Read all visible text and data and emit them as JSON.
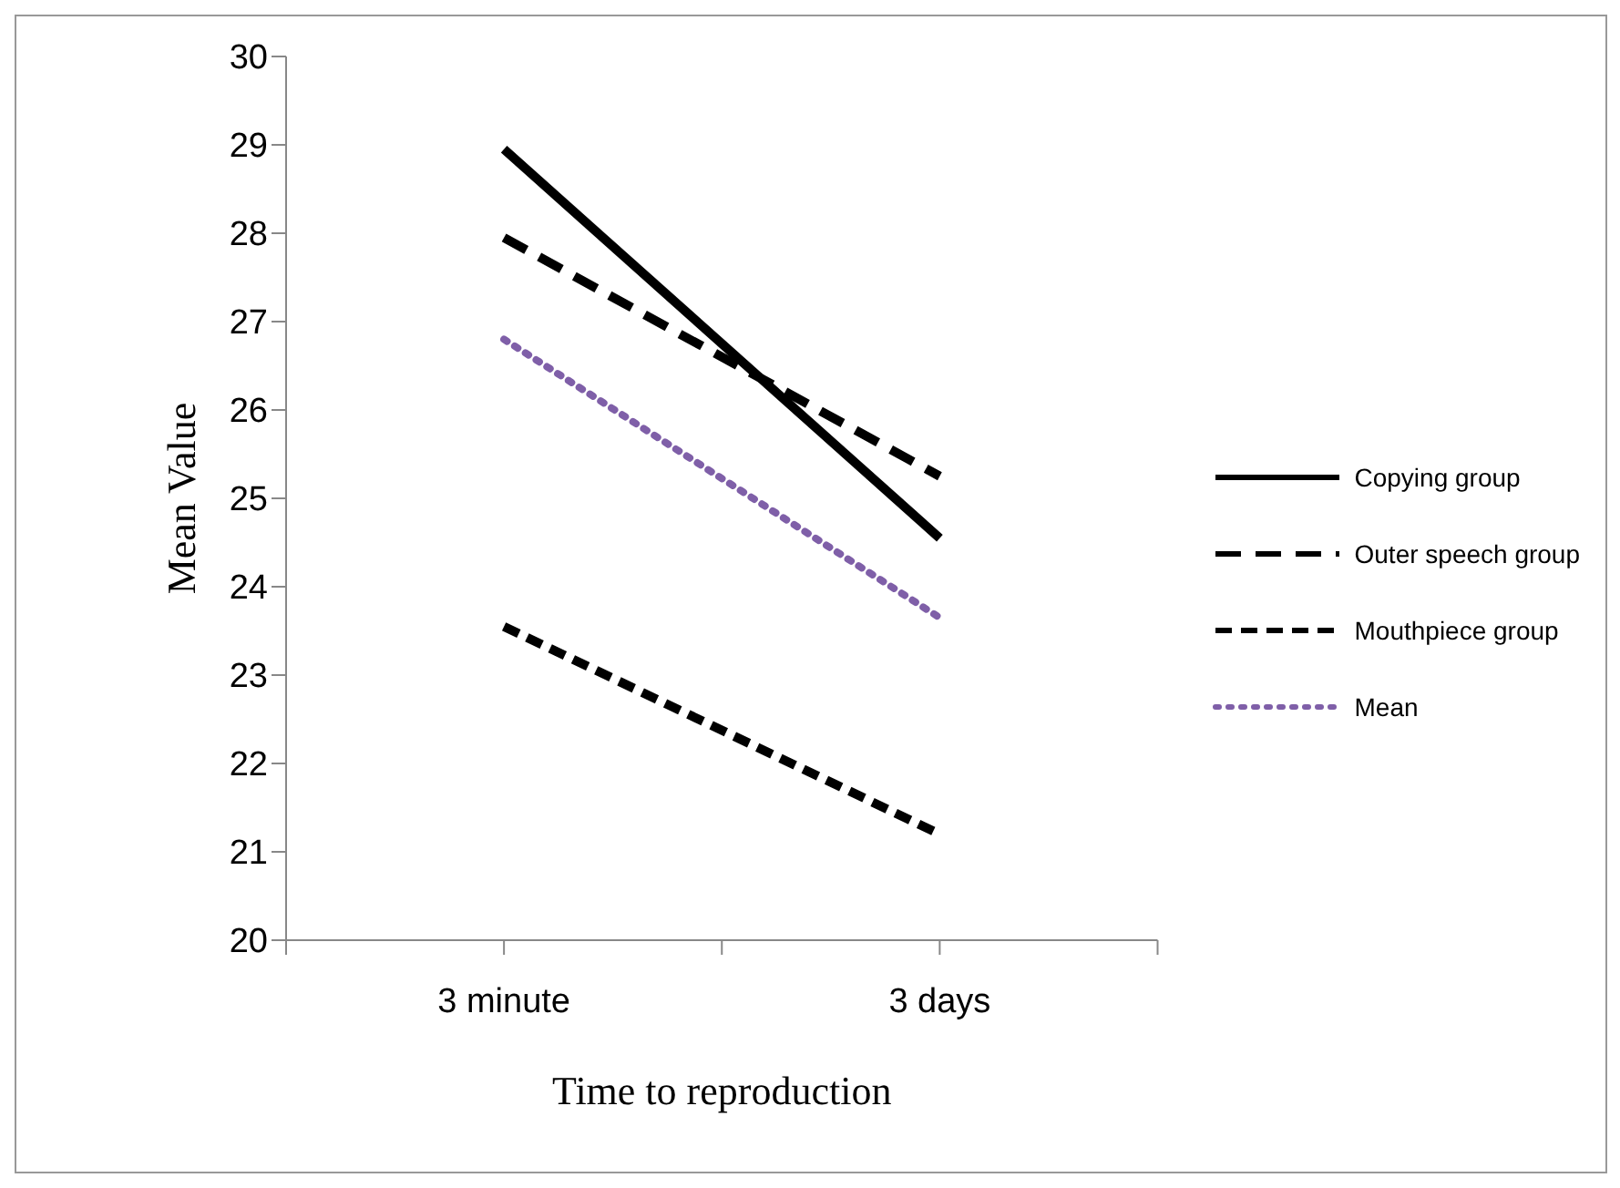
{
  "chart_data": {
    "type": "line",
    "xlabel": "Time to reproduction",
    "ylabel": "Mean Value",
    "categories": [
      "3 minute",
      "3 days"
    ],
    "series": [
      {
        "name": "Copying group",
        "color": "#000000",
        "line_style": "solid",
        "values": [
          28.95,
          24.55
        ]
      },
      {
        "name": "Outer speech group",
        "color": "#000000",
        "line_style": "dashed",
        "values": [
          27.95,
          25.25
        ]
      },
      {
        "name": "Mouthpiece group",
        "color": "#000000",
        "line_style": "dashed",
        "values": [
          23.55,
          21.2
        ]
      },
      {
        "name": "Mean",
        "color": "#7f5fa8",
        "line_style": "dotted",
        "values": [
          26.8,
          23.65
        ]
      }
    ],
    "ylim": [
      20,
      30
    ],
    "yticks": [
      20,
      21,
      22,
      23,
      24,
      25,
      26,
      27,
      28,
      29,
      30
    ],
    "grid": false,
    "legend": "right",
    "marker": "none"
  }
}
